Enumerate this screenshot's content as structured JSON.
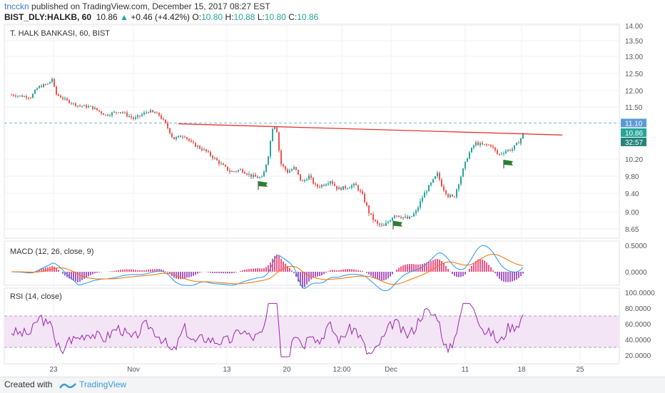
{
  "header": {
    "user": "tncckn",
    "published_text": "published on TradingView.com, December 15, 2017 08:27 EST",
    "symbol": "BIST_DLY:HALKB, 60",
    "last": "10.86",
    "change": "+0.46 (+4.42%)",
    "o_label": "O:",
    "o": "10.80",
    "h_label": "H:",
    "h": "10.88",
    "l_label": "L:",
    "l": "10.80",
    "c_label": "C:",
    "c": "10.86"
  },
  "footer": {
    "created": "Created with",
    "brand": "TradingView"
  },
  "colors": {
    "up": "#26a69a",
    "down": "#ef5350",
    "trend": "#e53935",
    "macd": "#2196f3",
    "signal": "#ff6d00",
    "rsi": "#9c27b0",
    "rsi_band": "#f3e5f5"
  },
  "chart_data": [
    {
      "type": "candlestick",
      "title": "T. HALK BANKASI, 60, BIST",
      "x_ticks": [
        "23",
        "Nov",
        "13",
        "20",
        "12:00",
        "Dec",
        "11",
        "18",
        "25"
      ],
      "y_ticks": [
        "14.00",
        "13.50",
        "13.00",
        "12.50",
        "12.00",
        "11.50",
        "10.20",
        "9.80",
        "9.40",
        "9.00",
        "8.65"
      ],
      "ylim": [
        8.4,
        14.0
      ],
      "price_labels": [
        "11.10",
        "10.86",
        "32:57"
      ],
      "close_path": [
        [
          0,
          11.9
        ],
        [
          15,
          11.85
        ],
        [
          35,
          11.8
        ],
        [
          45,
          12.1
        ],
        [
          60,
          12.2
        ],
        [
          65,
          12.35
        ],
        [
          70,
          11.9
        ],
        [
          85,
          11.7
        ],
        [
          100,
          11.55
        ],
        [
          120,
          11.5
        ],
        [
          140,
          11.3
        ],
        [
          160,
          11.4
        ],
        [
          180,
          11.2
        ],
        [
          200,
          11.4
        ],
        [
          215,
          11.3
        ],
        [
          225,
          11.05
        ],
        [
          235,
          10.7
        ],
        [
          250,
          10.8
        ],
        [
          260,
          10.6
        ],
        [
          280,
          10.4
        ],
        [
          300,
          10.1
        ],
        [
          315,
          9.9
        ],
        [
          330,
          9.95
        ],
        [
          345,
          9.8
        ],
        [
          360,
          9.75
        ],
        [
          368,
          10.3
        ],
        [
          375,
          11.1
        ],
        [
          380,
          10.9
        ],
        [
          385,
          10.1
        ],
        [
          395,
          9.9
        ],
        [
          405,
          10.0
        ],
        [
          415,
          9.65
        ],
        [
          425,
          9.8
        ],
        [
          435,
          9.55
        ],
        [
          445,
          9.6
        ],
        [
          455,
          9.7
        ],
        [
          465,
          9.5
        ],
        [
          480,
          9.55
        ],
        [
          490,
          9.6
        ],
        [
          500,
          9.35
        ],
        [
          510,
          8.95
        ],
        [
          520,
          8.75
        ],
        [
          530,
          8.7
        ],
        [
          545,
          8.95
        ],
        [
          555,
          8.9
        ],
        [
          565,
          8.85
        ],
        [
          575,
          9.0
        ],
        [
          585,
          9.35
        ],
        [
          595,
          9.6
        ],
        [
          605,
          9.85
        ],
        [
          612,
          9.55
        ],
        [
          620,
          9.35
        ],
        [
          628,
          9.3
        ],
        [
          638,
          9.8
        ],
        [
          648,
          10.3
        ],
        [
          658,
          10.6
        ],
        [
          668,
          10.55
        ],
        [
          680,
          10.55
        ],
        [
          690,
          10.3
        ],
        [
          700,
          10.4
        ],
        [
          710,
          10.45
        ],
        [
          720,
          10.65
        ],
        [
          726,
          10.86
        ]
      ],
      "trendline": [
        [
          "Nov 7",
          11.08
        ],
        [
          "Dec 21",
          10.8
        ]
      ],
      "flags": [
        [
          "Nov 15",
          9.55
        ],
        [
          "Nov 29",
          8.7
        ],
        [
          "Dec 15",
          10.05
        ]
      ]
    },
    {
      "type": "line",
      "title": "MACD (12, 26, close, 9)",
      "y_ticks": [
        "0.5000",
        "0.0000"
      ],
      "series": [
        {
          "name": "MACD"
        },
        {
          "name": "Signal"
        }
      ]
    },
    {
      "type": "line",
      "title": "RSI (14, close)",
      "y_ticks": [
        "100.0000",
        "80.0000",
        "60.0000",
        "40.0000",
        "20.0000"
      ],
      "band": [
        30,
        70
      ]
    }
  ]
}
